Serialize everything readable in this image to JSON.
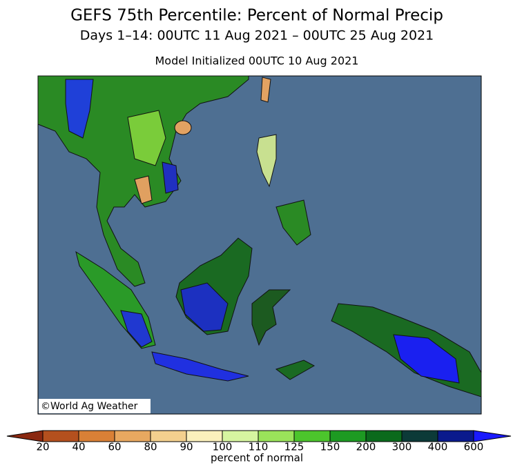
{
  "header": {
    "title": "GEFS 75th Percentile: Percent of Normal Precip",
    "subtitle": "Days 1–14: 00UTC 11 Aug 2021 – 00UTC 25 Aug 2021",
    "init": "Model Initialized 00UTC 10 Aug 2021"
  },
  "map": {
    "credit": "©World Ag Weather"
  },
  "colorbar": {
    "ticks": [
      20,
      40,
      60,
      80,
      90,
      100,
      110,
      125,
      150,
      200,
      300,
      400,
      600
    ],
    "colors": [
      "#8a2810",
      "#b4501e",
      "#d98036",
      "#e8a860",
      "#f4d08e",
      "#fbf0bc",
      "#d6f5a0",
      "#9ae35a",
      "#4cc52c",
      "#1d9a22",
      "#0b6a1c",
      "#0c3a38",
      "#0a1a8c",
      "#1a1aff"
    ],
    "label": "percent of normal"
  }
}
